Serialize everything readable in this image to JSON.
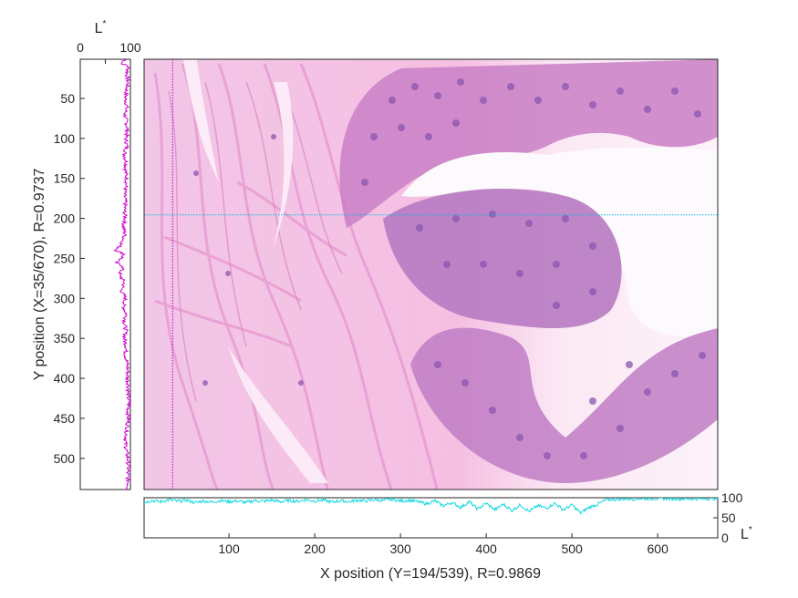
{
  "chart_data": [
    {
      "type": "image",
      "name": "histology-image",
      "description_values": {
        "x_range": [
          1,
          670
        ],
        "y_range": [
          1,
          539
        ]
      },
      "crosshair": {
        "x": 35,
        "y": 194
      },
      "colors": {
        "vertical": "#c000c0",
        "horizontal": "#00c0e0",
        "frame": "#262626"
      }
    },
    {
      "type": "line",
      "name": "left-profile",
      "title": "L",
      "title_sup": "*",
      "xlabel_top_ticks": [
        "0",
        "100"
      ],
      "xlim": [
        0,
        100
      ],
      "ylim": [
        1,
        539
      ],
      "yticks": [
        50,
        100,
        150,
        200,
        250,
        300,
        350,
        400,
        450,
        500
      ],
      "yticklabels": [
        "50",
        "100",
        "150",
        "200",
        "250",
        "300",
        "350",
        "400",
        "450",
        "500"
      ],
      "ylabel": "Y position (X=35/670), R=0.9737",
      "color": "#d000d0",
      "profile_nodes": [
        [
          1,
          92
        ],
        [
          6,
          82
        ],
        [
          10,
          96
        ],
        [
          20,
          93
        ],
        [
          30,
          95
        ],
        [
          40,
          92
        ],
        [
          50,
          90
        ],
        [
          60,
          93
        ],
        [
          70,
          89
        ],
        [
          80,
          92
        ],
        [
          90,
          94
        ],
        [
          100,
          91
        ],
        [
          110,
          93
        ],
        [
          120,
          88
        ],
        [
          130,
          92
        ],
        [
          140,
          90
        ],
        [
          150,
          93
        ],
        [
          160,
          91
        ],
        [
          170,
          88
        ],
        [
          180,
          90
        ],
        [
          190,
          88
        ],
        [
          200,
          90
        ],
        [
          210,
          86
        ],
        [
          220,
          89
        ],
        [
          230,
          84
        ],
        [
          240,
          72
        ],
        [
          245,
          88
        ],
        [
          250,
          82
        ],
        [
          255,
          70
        ],
        [
          260,
          86
        ],
        [
          270,
          78
        ],
        [
          280,
          88
        ],
        [
          290,
          82
        ],
        [
          300,
          90
        ],
        [
          310,
          86
        ],
        [
          320,
          92
        ],
        [
          330,
          88
        ],
        [
          340,
          91
        ],
        [
          350,
          88
        ],
        [
          360,
          92
        ],
        [
          370,
          90
        ],
        [
          380,
          93
        ],
        [
          390,
          95
        ],
        [
          400,
          94
        ],
        [
          410,
          96
        ],
        [
          420,
          95
        ],
        [
          430,
          97
        ],
        [
          440,
          95
        ],
        [
          450,
          96
        ],
        [
          460,
          94
        ],
        [
          470,
          92
        ],
        [
          480,
          90
        ],
        [
          490,
          92
        ],
        [
          500,
          95
        ],
        [
          510,
          96
        ],
        [
          520,
          94
        ],
        [
          530,
          96
        ],
        [
          539,
          95
        ]
      ]
    },
    {
      "type": "line",
      "name": "bottom-profile",
      "ylabel_right": "L",
      "ylabel_right_sup": "*",
      "xlim": [
        1,
        670
      ],
      "ylim": [
        0,
        100
      ],
      "xticks": [
        100,
        200,
        300,
        400,
        500,
        600
      ],
      "xticklabels": [
        "100",
        "200",
        "300",
        "400",
        "500",
        "600"
      ],
      "yticks": [
        0,
        50,
        100
      ],
      "yticklabels": [
        "0",
        "50",
        "100"
      ],
      "xlabel": "X position (Y=194/539), R=0.9869",
      "color": "#10d8e0",
      "profile_nodes": [
        [
          1,
          88
        ],
        [
          10,
          93
        ],
        [
          20,
          90
        ],
        [
          30,
          95
        ],
        [
          40,
          91
        ],
        [
          50,
          94
        ],
        [
          60,
          88
        ],
        [
          70,
          92
        ],
        [
          80,
          89
        ],
        [
          90,
          93
        ],
        [
          100,
          90
        ],
        [
          110,
          92
        ],
        [
          120,
          88
        ],
        [
          130,
          93
        ],
        [
          140,
          91
        ],
        [
          150,
          94
        ],
        [
          160,
          90
        ],
        [
          170,
          93
        ],
        [
          180,
          91
        ],
        [
          190,
          95
        ],
        [
          200,
          92
        ],
        [
          210,
          94
        ],
        [
          220,
          89
        ],
        [
          230,
          93
        ],
        [
          240,
          90
        ],
        [
          250,
          94
        ],
        [
          260,
          92
        ],
        [
          270,
          95
        ],
        [
          280,
          93
        ],
        [
          290,
          96
        ],
        [
          300,
          92
        ],
        [
          310,
          94
        ],
        [
          320,
          90
        ],
        [
          330,
          85
        ],
        [
          340,
          92
        ],
        [
          350,
          80
        ],
        [
          360,
          88
        ],
        [
          370,
          76
        ],
        [
          380,
          90
        ],
        [
          390,
          72
        ],
        [
          400,
          86
        ],
        [
          410,
          70
        ],
        [
          420,
          84
        ],
        [
          430,
          68
        ],
        [
          440,
          82
        ],
        [
          450,
          66
        ],
        [
          460,
          80
        ],
        [
          470,
          74
        ],
        [
          480,
          86
        ],
        [
          490,
          70
        ],
        [
          500,
          82
        ],
        [
          510,
          62
        ],
        [
          520,
          76
        ],
        [
          530,
          84
        ],
        [
          540,
          95
        ],
        [
          560,
          97
        ],
        [
          600,
          98
        ],
        [
          640,
          97
        ],
        [
          670,
          98
        ]
      ]
    }
  ]
}
